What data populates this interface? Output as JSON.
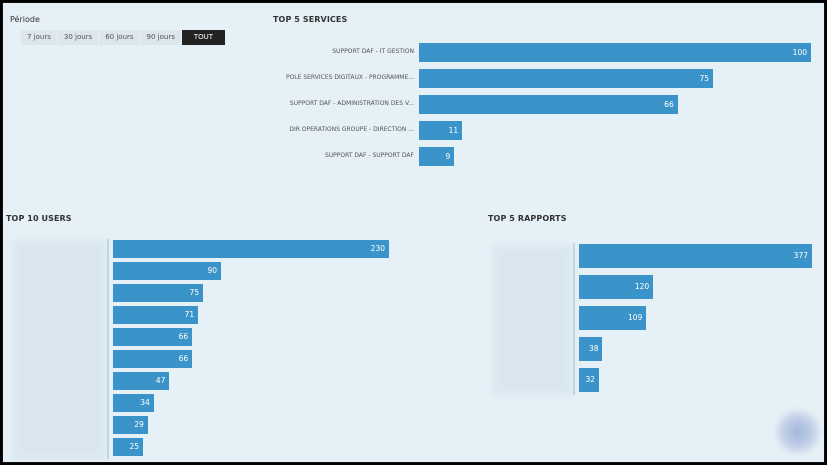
{
  "filter": {
    "label": "Période",
    "options": [
      "7 jours",
      "30 jours",
      "60 jours",
      "90 jours",
      "TOUT"
    ],
    "active": "TOUT"
  },
  "services": {
    "title": "TOP 5 SERVICES",
    "items": [
      {
        "label": "SUPPORT DAF - IT GESTION",
        "value": 100
      },
      {
        "label": "POLE SERVICES DIGITAUX - PROGRAMME...",
        "value": 75
      },
      {
        "label": "SUPPORT DAF - ADMINISTRATION DES V...",
        "value": 66
      },
      {
        "label": "DIR OPERATIONS GROUPE - DIRECTION ...",
        "value": 11
      },
      {
        "label": "SUPPORT DAF - SUPPORT DAF",
        "value": 9
      }
    ]
  },
  "users": {
    "title": "TOP 10 USERS",
    "values": [
      230,
      90,
      75,
      71,
      66,
      66,
      47,
      34,
      29,
      25
    ]
  },
  "reports": {
    "title": "TOP 5 RAPPORTS",
    "values": [
      377,
      120,
      109,
      38,
      32
    ]
  },
  "colors": {
    "bar": "#3a94c9",
    "background": "#e5f0f7",
    "active_tab": "#222222"
  },
  "chart_data": [
    {
      "type": "bar",
      "title": "TOP 5 SERVICES",
      "orientation": "horizontal",
      "categories": [
        "SUPPORT DAF - IT GESTION",
        "POLE SERVICES DIGITAUX - PROGRAMME...",
        "SUPPORT DAF - ADMINISTRATION DES V...",
        "DIR OPERATIONS GROUPE - DIRECTION ...",
        "SUPPORT DAF - SUPPORT DAF"
      ],
      "values": [
        100,
        75,
        66,
        11,
        9
      ]
    },
    {
      "type": "bar",
      "title": "TOP 10 USERS",
      "orientation": "horizontal",
      "values": [
        230,
        90,
        75,
        71,
        66,
        66,
        47,
        34,
        29,
        25
      ]
    },
    {
      "type": "bar",
      "title": "TOP 5 RAPPORTS",
      "orientation": "horizontal",
      "values": [
        377,
        120,
        109,
        38,
        32
      ]
    }
  ]
}
